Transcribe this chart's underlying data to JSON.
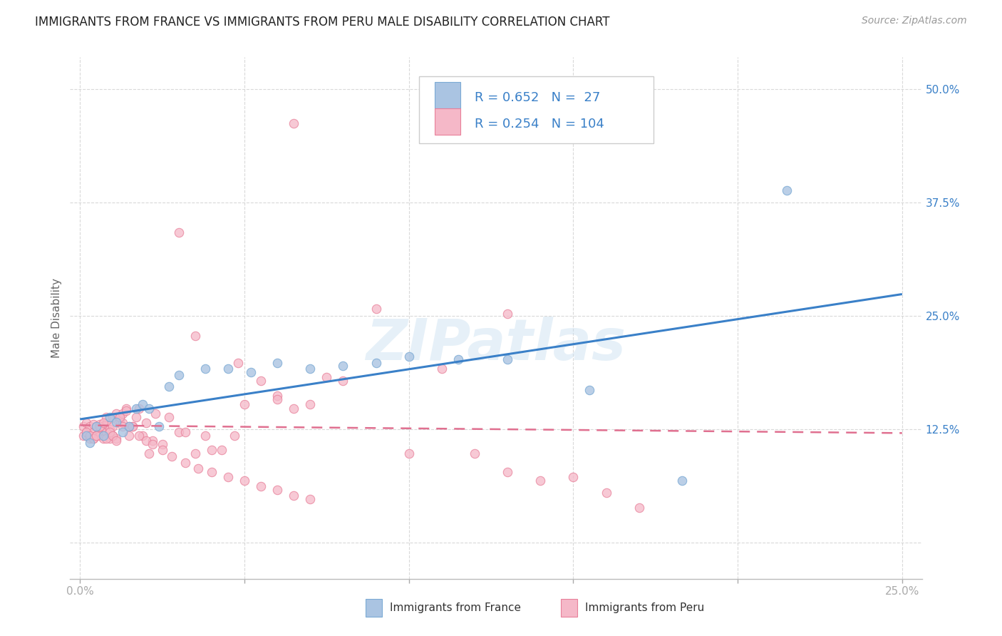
{
  "title": "IMMIGRANTS FROM FRANCE VS IMMIGRANTS FROM PERU MALE DISABILITY CORRELATION CHART",
  "source": "Source: ZipAtlas.com",
  "ylabel_label": "Male Disability",
  "xlim": [
    0.0,
    0.25
  ],
  "ylim": [
    0.0,
    0.5
  ],
  "xticks": [
    0.0,
    0.05,
    0.1,
    0.15,
    0.2,
    0.25
  ],
  "yticks": [
    0.0,
    0.125,
    0.25,
    0.375,
    0.5
  ],
  "xtick_labels_bottom": [
    "0.0%",
    "",
    "",
    "",
    "",
    "25.0%"
  ],
  "ytick_labels": [
    "",
    "12.5%",
    "25.0%",
    "37.5%",
    "50.0%"
  ],
  "france_fill_color": "#aac4e2",
  "france_edge_color": "#7baad4",
  "peru_fill_color": "#f5b8c8",
  "peru_edge_color": "#e8809a",
  "trend_france_color": "#3a80c8",
  "trend_peru_color": "#e07090",
  "legend_text_color": "#3a80c8",
  "R_france": 0.652,
  "N_france": 27,
  "R_peru": 0.254,
  "N_peru": 104,
  "watermark": "ZIPatlas",
  "background_color": "#ffffff",
  "france_x": [
    0.002,
    0.003,
    0.005,
    0.007,
    0.009,
    0.011,
    0.013,
    0.015,
    0.017,
    0.019,
    0.021,
    0.024,
    0.027,
    0.03,
    0.038,
    0.045,
    0.052,
    0.06,
    0.07,
    0.08,
    0.09,
    0.1,
    0.115,
    0.13,
    0.155,
    0.183,
    0.215
  ],
  "france_y": [
    0.118,
    0.11,
    0.128,
    0.118,
    0.138,
    0.133,
    0.122,
    0.128,
    0.148,
    0.152,
    0.148,
    0.128,
    0.172,
    0.185,
    0.192,
    0.192,
    0.188,
    0.198,
    0.192,
    0.195,
    0.198,
    0.205,
    0.202,
    0.202,
    0.168,
    0.068,
    0.388
  ],
  "peru_x": [
    0.001,
    0.001,
    0.002,
    0.002,
    0.002,
    0.003,
    0.003,
    0.003,
    0.004,
    0.004,
    0.004,
    0.005,
    0.005,
    0.005,
    0.006,
    0.006,
    0.006,
    0.007,
    0.007,
    0.007,
    0.008,
    0.008,
    0.008,
    0.009,
    0.009,
    0.01,
    0.01,
    0.01,
    0.011,
    0.011,
    0.012,
    0.012,
    0.013,
    0.013,
    0.014,
    0.015,
    0.015,
    0.016,
    0.017,
    0.018,
    0.019,
    0.02,
    0.021,
    0.022,
    0.023,
    0.025,
    0.027,
    0.03,
    0.032,
    0.035,
    0.038,
    0.04,
    0.043,
    0.047,
    0.05,
    0.055,
    0.06,
    0.065,
    0.07,
    0.075,
    0.08,
    0.09,
    0.1,
    0.11,
    0.12,
    0.13,
    0.14,
    0.15,
    0.16,
    0.17,
    0.002,
    0.003,
    0.004,
    0.005,
    0.006,
    0.007,
    0.008,
    0.009,
    0.01,
    0.011,
    0.012,
    0.013,
    0.014,
    0.016,
    0.018,
    0.02,
    0.022,
    0.025,
    0.028,
    0.032,
    0.036,
    0.04,
    0.045,
    0.05,
    0.055,
    0.06,
    0.065,
    0.07,
    0.065,
    0.13,
    0.048,
    0.06,
    0.03,
    0.035
  ],
  "peru_y": [
    0.128,
    0.118,
    0.122,
    0.132,
    0.118,
    0.118,
    0.128,
    0.115,
    0.122,
    0.13,
    0.115,
    0.118,
    0.128,
    0.118,
    0.122,
    0.13,
    0.118,
    0.118,
    0.128,
    0.115,
    0.122,
    0.13,
    0.138,
    0.115,
    0.125,
    0.118,
    0.128,
    0.138,
    0.115,
    0.142,
    0.135,
    0.138,
    0.132,
    0.142,
    0.148,
    0.128,
    0.118,
    0.128,
    0.138,
    0.148,
    0.118,
    0.132,
    0.098,
    0.112,
    0.142,
    0.108,
    0.138,
    0.122,
    0.122,
    0.098,
    0.118,
    0.102,
    0.102,
    0.118,
    0.152,
    0.178,
    0.162,
    0.148,
    0.152,
    0.182,
    0.178,
    0.258,
    0.098,
    0.192,
    0.098,
    0.078,
    0.068,
    0.072,
    0.055,
    0.038,
    0.122,
    0.118,
    0.115,
    0.118,
    0.128,
    0.132,
    0.115,
    0.122,
    0.118,
    0.112,
    0.138,
    0.128,
    0.145,
    0.128,
    0.118,
    0.112,
    0.108,
    0.102,
    0.095,
    0.088,
    0.082,
    0.078,
    0.072,
    0.068,
    0.062,
    0.058,
    0.052,
    0.048,
    0.462,
    0.252,
    0.198,
    0.158,
    0.342,
    0.228
  ]
}
